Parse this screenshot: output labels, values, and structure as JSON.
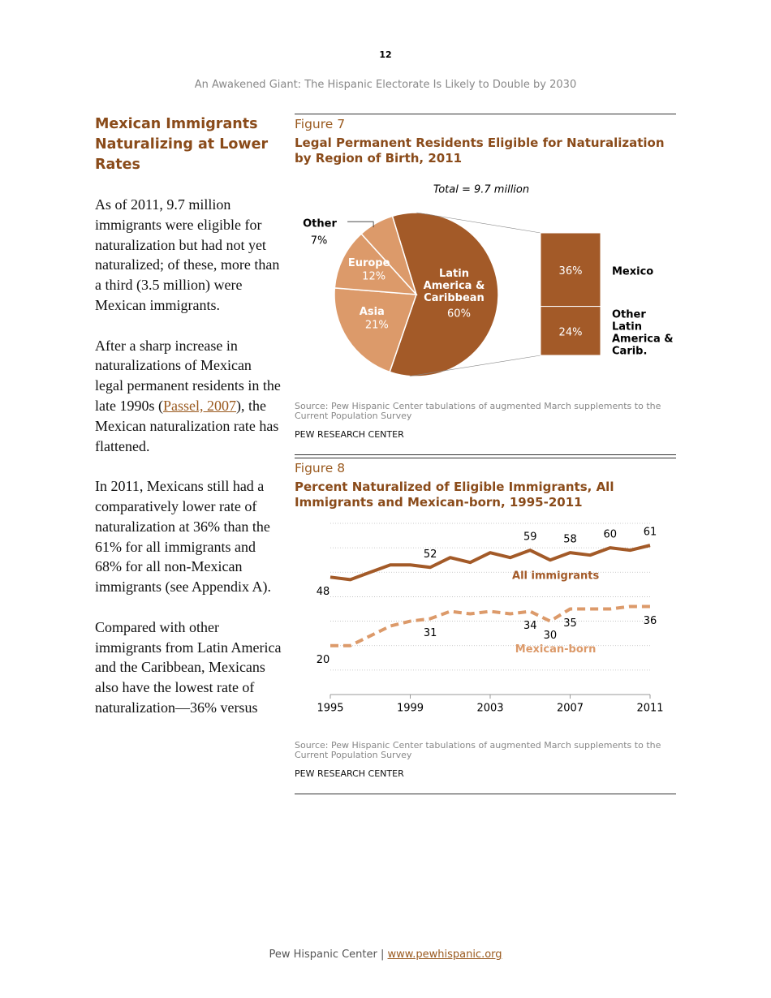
{
  "header": {
    "page_number": "12",
    "running_title": "An Awakened Giant: The Hispanic Electorate Is Likely to Double by 2030"
  },
  "sidebar": {
    "heading": "Mexican Immigrants Naturalizing at Lower Rates",
    "paragraphs": [
      {
        "text": "As of 2011, 9.7 million immigrants were eligible for naturalization but had not yet naturalized; of these, more than a third (3.5 million) were Mexican immigrants."
      },
      {
        "text": "After a sharp increase in naturalizations of Mexican legal permanent residents in the late 1990s (",
        "link": "Passel, 2007",
        "text_after": "), the Mexican naturalization rate has flattened."
      },
      {
        "text": "In 2011, Mexicans still had a comparatively lower rate of naturalization at 36% than the 61% for all immigrants and 68% for all non-Mexican immigrants (see Appendix A)."
      },
      {
        "text": "Compared with other immigrants from Latin America and the Caribbean, Mexicans also have the lowest rate of naturalization—36% versus"
      }
    ]
  },
  "chart_data": [
    {
      "type": "pie",
      "figure_label": "Figure 7",
      "title": "Legal Permanent Residents Eligible for Naturalization by Region of Birth, 2011",
      "subtitle": "Total = 9.7 million",
      "categories": [
        "Latin America & Caribbean",
        "Asia",
        "Europe",
        "Other"
      ],
      "values": [
        60,
        21,
        12,
        7
      ],
      "value_labels": [
        "60%",
        "21%",
        "12%",
        "7%"
      ],
      "colors": [
        "#a35a28",
        "#dc9a6a",
        "#dc9a6a",
        "#dc9a6a"
      ],
      "breakdown": {
        "categories": [
          "Mexico",
          "Other Latin America & Carib."
        ],
        "values": [
          36,
          24
        ],
        "value_labels": [
          "36%",
          "24%"
        ],
        "color": "#a35a28"
      },
      "source": "Source: Pew Hispanic Center tabulations of augmented March supplements to the Current Population Survey",
      "credit": "PEW RESEARCH CENTER"
    },
    {
      "type": "line",
      "figure_label": "Figure 8",
      "title": "Percent Naturalized of Eligible Immigrants, All Immigrants and Mexican-born, 1995-2011",
      "x": [
        1995,
        1996,
        1997,
        1998,
        1999,
        2000,
        2001,
        2002,
        2003,
        2004,
        2005,
        2006,
        2007,
        2008,
        2009,
        2010,
        2011
      ],
      "xlim": [
        1995,
        2011
      ],
      "xticks": [
        1995,
        1999,
        2003,
        2007,
        2011
      ],
      "ylim": [
        0,
        70
      ],
      "yticks": [
        0,
        10,
        20,
        30,
        40,
        50,
        60,
        70
      ],
      "grid": true,
      "series": [
        {
          "name": "All immigrants",
          "color": "#a35a28",
          "dash": false,
          "values": [
            48,
            47,
            50,
            53,
            53,
            52,
            56,
            54,
            58,
            56,
            59,
            55,
            58,
            57,
            60,
            59,
            61
          ],
          "labeled": [
            0,
            5,
            10,
            12,
            14,
            16
          ]
        },
        {
          "name": "Mexican-born",
          "color": "#dc9a6a",
          "dash": true,
          "values": [
            20,
            20,
            24,
            28,
            30,
            31,
            34,
            33,
            34,
            33,
            34,
            30,
            35,
            35,
            35,
            36,
            36
          ],
          "labeled": [
            0,
            5,
            10,
            11,
            12,
            16
          ]
        }
      ],
      "source": "Source: Pew Hispanic Center tabulations of augmented March supplements to the Current Population Survey",
      "credit": "PEW RESEARCH CENTER"
    }
  ],
  "footer": {
    "text": "Pew Hispanic Center |",
    "link": "www.pewhispanic.org"
  }
}
